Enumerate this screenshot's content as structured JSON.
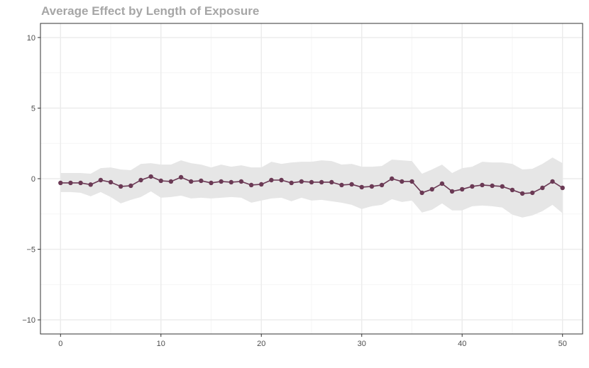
{
  "chart_data": {
    "type": "line",
    "title": "Average Effect by Length of Exposure",
    "xlabel": "",
    "ylabel": "",
    "xlim": [
      -2,
      52
    ],
    "ylim": [
      -11,
      11
    ],
    "x_ticks": [
      0,
      10,
      20,
      30,
      40,
      50
    ],
    "x_tick_labels": [
      "0",
      "10",
      "20",
      "30",
      "40",
      "50"
    ],
    "y_ticks": [
      -10,
      -5,
      0,
      5,
      10
    ],
    "y_tick_labels": [
      "−10",
      "−5",
      "0",
      "5",
      "10"
    ],
    "grid": true,
    "legend": "none",
    "colors": {
      "line": "#6b3a55",
      "ribbon": "#e6e6e6",
      "grid_major": "#ebebeb",
      "grid_minor": "#f5f5f5",
      "panel_border": "#333333",
      "title": "#a6a6a6"
    },
    "series": [
      {
        "x": [
          0,
          1,
          2,
          3,
          4,
          5,
          6,
          7,
          8,
          9,
          10,
          11,
          12,
          13,
          14,
          15,
          16,
          17,
          18,
          19,
          20,
          21,
          22,
          23,
          24,
          25,
          26,
          27,
          28,
          29,
          30,
          31,
          32,
          33,
          34,
          35,
          36,
          37,
          38,
          39,
          40,
          41,
          42,
          43,
          44,
          45,
          46,
          47,
          48,
          49,
          50
        ],
        "y": [
          -0.3,
          -0.3,
          -0.3,
          -0.42,
          -0.1,
          -0.25,
          -0.55,
          -0.5,
          -0.1,
          0.15,
          -0.15,
          -0.2,
          0.1,
          -0.2,
          -0.15,
          -0.3,
          -0.2,
          -0.25,
          -0.2,
          -0.45,
          -0.4,
          -0.1,
          -0.1,
          -0.3,
          -0.2,
          -0.25,
          -0.25,
          -0.25,
          -0.45,
          -0.4,
          -0.6,
          -0.55,
          -0.45,
          0.0,
          -0.2,
          -0.2,
          -1.0,
          -0.75,
          -0.35,
          -0.9,
          -0.75,
          -0.55,
          -0.45,
          -0.5,
          -0.55,
          -0.8,
          -1.05,
          -1.0,
          -0.65,
          -0.2,
          -0.65
        ],
        "lower": [
          -0.95,
          -0.95,
          -1.0,
          -1.25,
          -0.95,
          -1.3,
          -1.75,
          -1.5,
          -1.3,
          -0.9,
          -1.35,
          -1.3,
          -1.2,
          -1.4,
          -1.35,
          -1.4,
          -1.35,
          -1.3,
          -1.35,
          -1.7,
          -1.55,
          -1.4,
          -1.35,
          -1.6,
          -1.35,
          -1.55,
          -1.5,
          -1.6,
          -1.7,
          -1.85,
          -2.15,
          -1.95,
          -1.85,
          -1.45,
          -1.65,
          -1.55,
          -2.4,
          -2.2,
          -1.75,
          -2.25,
          -2.25,
          -1.95,
          -1.9,
          -1.95,
          -2.05,
          -2.55,
          -2.75,
          -2.6,
          -2.3,
          -1.85,
          -2.45
        ],
        "upper": [
          0.4,
          0.4,
          0.4,
          0.35,
          0.75,
          0.8,
          0.65,
          0.6,
          1.05,
          1.1,
          1.0,
          1.0,
          1.3,
          1.1,
          1.0,
          0.8,
          1.0,
          0.85,
          0.95,
          0.8,
          0.8,
          1.2,
          1.05,
          1.15,
          1.2,
          1.2,
          1.3,
          1.25,
          1.0,
          1.05,
          0.85,
          0.85,
          0.9,
          1.35,
          1.3,
          1.25,
          0.35,
          0.65,
          1.0,
          0.4,
          0.75,
          0.85,
          1.2,
          1.15,
          1.15,
          1.05,
          0.65,
          0.7,
          1.05,
          1.5,
          1.1
        ]
      }
    ]
  }
}
